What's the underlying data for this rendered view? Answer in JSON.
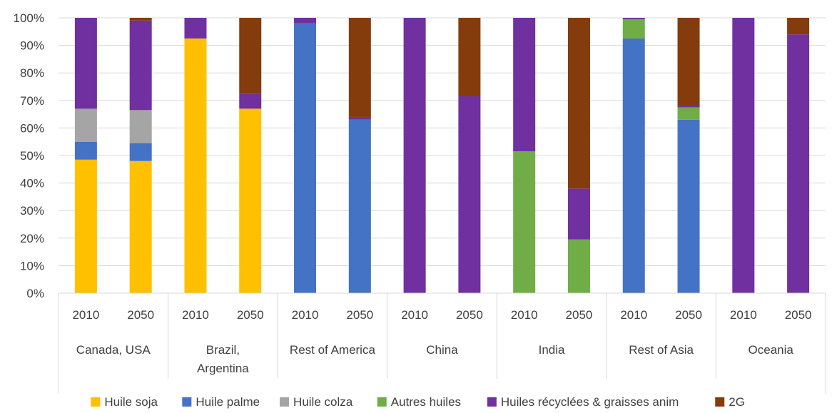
{
  "chart_data": {
    "type": "bar",
    "stacked": "percent",
    "ylim": [
      0,
      100
    ],
    "yticks": [
      "0%",
      "10%",
      "20%",
      "30%",
      "40%",
      "50%",
      "60%",
      "70%",
      "80%",
      "90%",
      "100%"
    ],
    "grid": true,
    "legend_position": "bottom",
    "groups": [
      "Canada, USA",
      "Brazil, Argentina",
      "Rest of America",
      "China",
      "India",
      "Rest of Asia",
      "Oceania"
    ],
    "categories": [
      "2010",
      "2050",
      "2010",
      "2050",
      "2010",
      "2050",
      "2010",
      "2050",
      "2010",
      "2050",
      "2010",
      "2050",
      "2010",
      "2050"
    ],
    "series": [
      {
        "name": "Huile soja",
        "color": "#FFC000",
        "values": [
          48.5,
          48,
          92.5,
          67,
          0,
          0,
          0,
          0,
          0,
          0,
          0,
          0,
          0,
          0
        ]
      },
      {
        "name": "Huile palme",
        "color": "#4472C4",
        "values": [
          6.5,
          6.5,
          0,
          0,
          98,
          63,
          0,
          0,
          0,
          0,
          92.5,
          63,
          0,
          0
        ]
      },
      {
        "name": "Huile colza",
        "color": "#A5A5A5",
        "values": [
          12,
          12,
          0,
          0,
          0,
          0,
          0,
          0,
          0,
          0,
          0,
          0,
          0,
          0
        ]
      },
      {
        "name": "Autres huiles",
        "color": "#70AD47",
        "values": [
          0,
          0,
          0,
          0,
          0,
          0,
          0,
          0,
          51.5,
          19.5,
          7,
          4.5,
          0,
          0
        ]
      },
      {
        "name": "Huiles récyclées & graisses anim",
        "color": "#7030A0",
        "values": [
          33,
          32.5,
          7.5,
          5.5,
          2,
          1,
          100,
          71.5,
          48.5,
          18.5,
          0.5,
          0.5,
          100,
          94
        ]
      },
      {
        "name": "2G",
        "color": "#843C0C",
        "values": [
          0,
          1,
          0,
          27.5,
          0,
          36,
          0,
          28.5,
          0,
          62,
          0,
          32,
          0,
          6
        ]
      }
    ]
  }
}
